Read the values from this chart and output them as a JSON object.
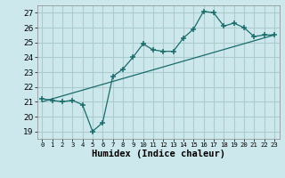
{
  "xlabel": "Humidex (Indice chaleur)",
  "bg_color": "#cce8ec",
  "grid_color": "#aacccc",
  "line_color": "#1a6b6b",
  "xlim": [
    -0.5,
    23.5
  ],
  "ylim": [
    18.5,
    27.5
  ],
  "xticks": [
    0,
    1,
    2,
    3,
    4,
    5,
    6,
    7,
    8,
    9,
    10,
    11,
    12,
    13,
    14,
    15,
    16,
    17,
    18,
    19,
    20,
    21,
    22,
    23
  ],
  "yticks": [
    19,
    20,
    21,
    22,
    23,
    24,
    25,
    26,
    27
  ],
  "line1_x": [
    0,
    1,
    2,
    3,
    4,
    5,
    6,
    7,
    8,
    9,
    10,
    11,
    12,
    13,
    14,
    15,
    16,
    17,
    18,
    19,
    20,
    21,
    22,
    23
  ],
  "line1_y": [
    21.2,
    21.1,
    21.0,
    21.1,
    20.8,
    19.0,
    19.6,
    22.7,
    23.2,
    24.0,
    24.9,
    24.5,
    24.4,
    24.4,
    25.3,
    25.9,
    27.1,
    27.0,
    26.1,
    26.3,
    26.0,
    25.4,
    25.5,
    25.5
  ],
  "line2_x": [
    0,
    23
  ],
  "line2_y": [
    21.0,
    25.5
  ],
  "marker_size": 4,
  "tick_fontsize": 6.5,
  "label_fontsize": 7.5
}
